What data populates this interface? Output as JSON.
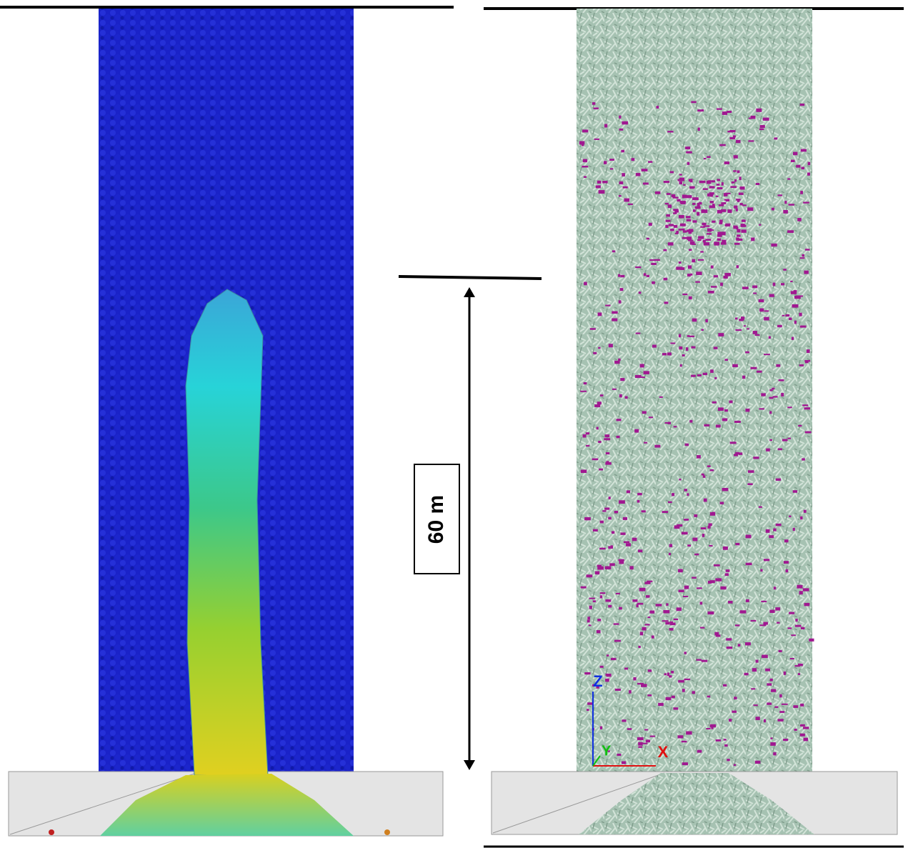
{
  "scale_label": "60 m",
  "axes": {
    "z": "Z",
    "y": "Y",
    "x": "X"
  }
}
